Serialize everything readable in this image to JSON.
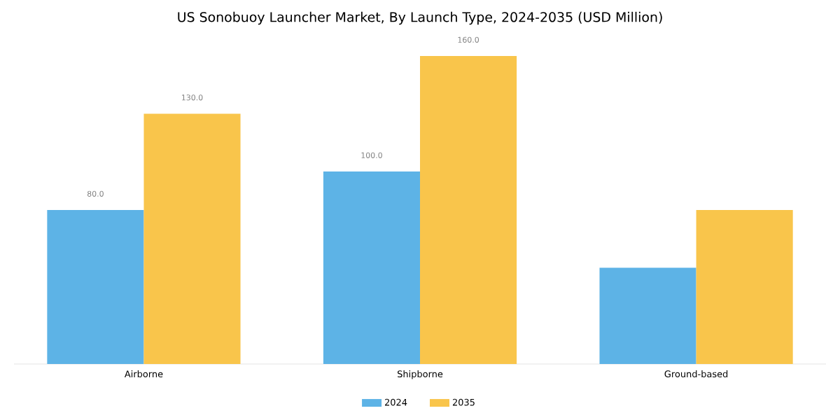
{
  "chart_data": {
    "type": "bar",
    "title": "US Sonobuoy Launcher Market, By Launch Type, 2024-2035 (USD Million)",
    "categories": [
      "Airborne",
      "Shipborne",
      "Ground-based"
    ],
    "series": [
      {
        "name": "2024",
        "color": "#5db3e6",
        "values": [
          80,
          100,
          50
        ],
        "value_labels": [
          "80.0",
          "100.0",
          null
        ]
      },
      {
        "name": "2035",
        "color": "#f9c54b",
        "values": [
          130,
          160,
          80
        ],
        "value_labels": [
          "130.0",
          "160.0",
          null
        ]
      }
    ],
    "legend": "bottom",
    "grid": false
  }
}
